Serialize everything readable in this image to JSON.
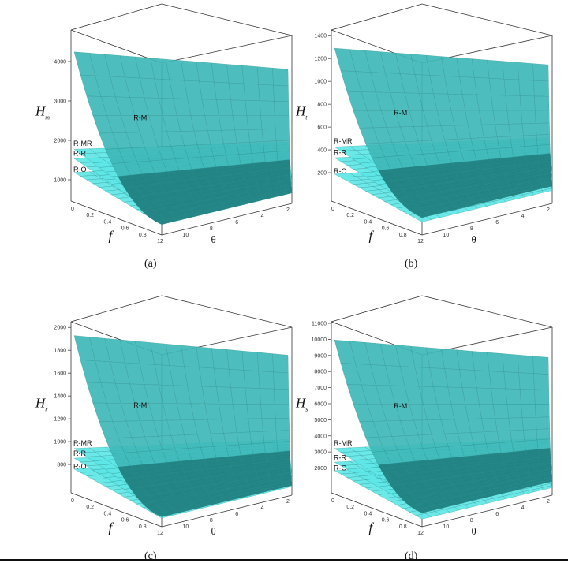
{
  "chart_data": [
    {
      "type": "surface",
      "caption": "(a)",
      "zlabel": {
        "main": "H",
        "sub": "m"
      },
      "xlabel": "f",
      "ylabel": "θ",
      "zticks": [
        1000,
        2000,
        3000,
        4000
      ],
      "zlim": [
        600,
        4800
      ],
      "xticks": [
        "0",
        "0.2",
        "0.4",
        "0.6",
        "0.8"
      ],
      "yticks": [
        "12",
        "10",
        "8",
        "6",
        "4",
        "2"
      ],
      "surfaces": [
        {
          "name": "R-M",
          "z_back": 4500,
          "z_front": 880
        },
        {
          "name": "R-MR",
          "z_back": 1900,
          "z_front": 1180
        },
        {
          "name": "R-R",
          "z_back": 1650,
          "z_front": 1050
        },
        {
          "name": "R-O",
          "z_back": 1280,
          "z_front": 880
        }
      ]
    },
    {
      "type": "surface",
      "caption": "(b)",
      "zlabel": {
        "main": "H",
        "sub": "t"
      },
      "xlabel": "f",
      "ylabel": "θ",
      "zticks": [
        200,
        400,
        600,
        800,
        1000,
        1200,
        1400
      ],
      "zlim": [
        0,
        1450
      ],
      "xticks": [
        "0",
        "0.2",
        "0.4",
        "0.6",
        "0.8"
      ],
      "yticks": [
        "12",
        "10",
        "8",
        "6",
        "4",
        "2"
      ],
      "surfaces": [
        {
          "name": "R-M",
          "z_back": 1380,
          "z_front": 160
        },
        {
          "name": "R-MR",
          "z_back": 470,
          "z_front": 280
        },
        {
          "name": "R-R",
          "z_back": 370,
          "z_front": 220
        },
        {
          "name": "R-O",
          "z_back": 220,
          "z_front": 120
        }
      ]
    },
    {
      "type": "surface",
      "caption": "(c)",
      "zlabel": {
        "main": "H",
        "sub": "r"
      },
      "xlabel": "f",
      "ylabel": "θ",
      "zticks": [
        800,
        1000,
        1200,
        1400,
        1600,
        1800,
        2000
      ],
      "zlim": [
        600,
        2050
      ],
      "xticks": [
        "0",
        "0.2",
        "0.4",
        "0.6",
        "0.8"
      ],
      "yticks": [
        "12",
        "10",
        "8",
        "6",
        "4",
        "2"
      ],
      "surfaces": [
        {
          "name": "R-M",
          "z_back": 2020,
          "z_front": 690
        },
        {
          "name": "R-MR",
          "z_back": 980,
          "z_front": 780
        },
        {
          "name": "R-R",
          "z_back": 890,
          "z_front": 730
        },
        {
          "name": "R-O",
          "z_back": 790,
          "z_front": 680
        }
      ]
    },
    {
      "type": "surface",
      "caption": "(d)",
      "zlabel": {
        "main": "H",
        "sub": "s"
      },
      "xlabel": "f",
      "ylabel": "θ",
      "zticks": [
        2000,
        3000,
        4000,
        5000,
        6000,
        7000,
        8000,
        9000,
        10000,
        11000
      ],
      "zlim": [
        800,
        11100
      ],
      "xticks": [
        "0",
        "0.2",
        "0.4",
        "0.6",
        "0.8"
      ],
      "yticks": [
        "12",
        "10",
        "8",
        "6",
        "4",
        "2"
      ],
      "surfaces": [
        {
          "name": "R-M",
          "z_back": 10600,
          "z_front": 1700
        },
        {
          "name": "R-MR",
          "z_back": 3500,
          "z_front": 2300
        },
        {
          "name": "R-R",
          "z_back": 2600,
          "z_front": 1800
        },
        {
          "name": "R-O",
          "z_back": 2050,
          "z_front": 1300
        }
      ]
    }
  ],
  "colors": {
    "surface_fill": "#5ee6e6",
    "surface_dark": "#1a6b6b",
    "mesh": "#2a8a8a",
    "frame": "#333333"
  }
}
